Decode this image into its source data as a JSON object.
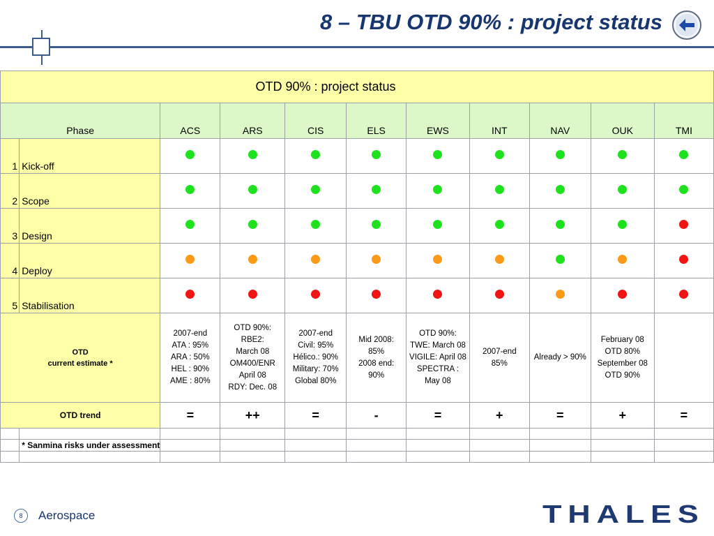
{
  "header": {
    "title": "8 – TBU OTD 90% : project status",
    "back_icon": "arrow-left-icon"
  },
  "table": {
    "title": "OTD 90% : project status",
    "phase_header": "Phase",
    "projects": [
      "ACS",
      "ARS",
      "CIS",
      "ELS",
      "EWS",
      "INT",
      "NAV",
      "OUK",
      "TMI"
    ],
    "phases": [
      {
        "num": "1",
        "name": "Kick-off",
        "status": [
          "green",
          "green",
          "green",
          "green",
          "green",
          "green",
          "green",
          "green",
          "green"
        ]
      },
      {
        "num": "2",
        "name": "Scope",
        "status": [
          "green",
          "green",
          "green",
          "green",
          "green",
          "green",
          "green",
          "green",
          "green"
        ]
      },
      {
        "num": "3",
        "name": "Design",
        "status": [
          "green",
          "green",
          "green",
          "green",
          "green",
          "green",
          "green",
          "green",
          "red"
        ]
      },
      {
        "num": "4",
        "name": "Deploy",
        "status": [
          "orange",
          "orange",
          "orange",
          "orange",
          "orange",
          "orange",
          "green",
          "orange",
          "red"
        ]
      },
      {
        "num": "5",
        "name": "Stabilisation",
        "status": [
          "red",
          "red",
          "red",
          "red",
          "red",
          "red",
          "orange",
          "red",
          "red"
        ]
      }
    ],
    "otd_label_line1": "OTD",
    "otd_label_line2": "current estimate *",
    "otd_estimates": [
      [
        "2007-end",
        "ATA : 95%",
        "ARA : 50%",
        "HEL : 90%",
        "AME : 80%"
      ],
      [
        "OTD 90%:",
        "RBE2:",
        "March 08",
        "OM400/ENR",
        "April 08",
        "RDY: Dec. 08"
      ],
      [
        "2007-end",
        "Civil: 95%",
        "Hélico.: 90%",
        "Military: 70%",
        "Global 80%"
      ],
      [
        "Mid 2008:",
        "85%",
        "2008 end:",
        "90%"
      ],
      [
        "OTD 90%:",
        "TWE: March 08",
        "VIGILE: April 08",
        "SPECTRA :",
        "May 08"
      ],
      [
        "2007-end",
        "85%"
      ],
      [
        "Already > 90%"
      ],
      [
        "February 08",
        "OTD 80%",
        "September 08",
        "OTD 90%"
      ],
      []
    ],
    "trend_label": "OTD trend",
    "trends": [
      "=",
      "++",
      "=",
      "-",
      "=",
      "+",
      "=",
      "+",
      "="
    ],
    "note": "* Sanmina risks under assessment",
    "colors": {
      "green": "#1ee21e",
      "orange": "#fb9a18",
      "red": "#f01414",
      "header_yellow": "#ffffa8",
      "header_green": "#dcf8c8"
    }
  },
  "footer": {
    "page_number": "8",
    "label": "Aerospace",
    "logo_text": "THALES"
  }
}
